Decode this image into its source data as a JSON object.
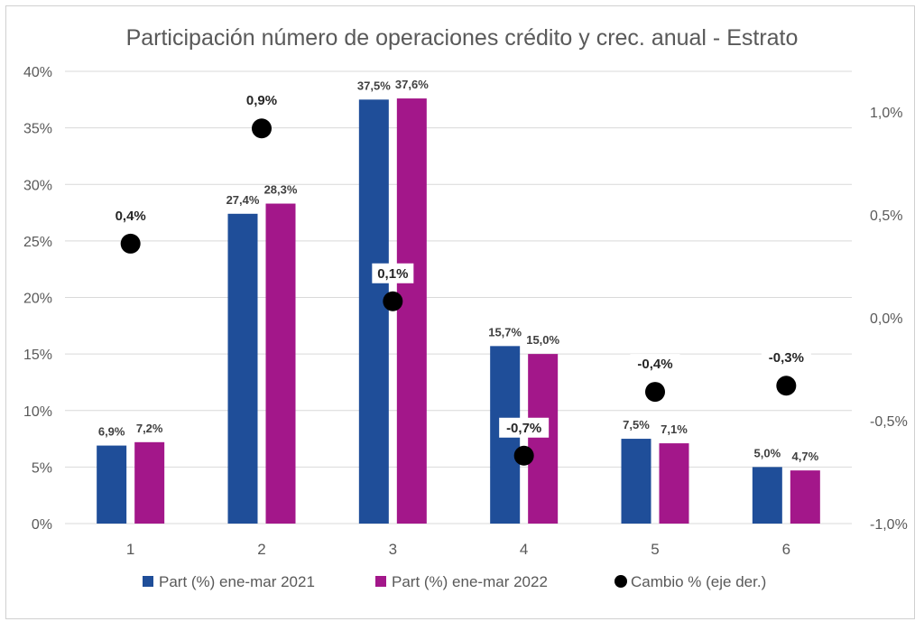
{
  "chart_data": {
    "type": "bar",
    "title": "Participación número de operaciones crédito y crec. anual - Estrato",
    "categories": [
      "1",
      "2",
      "3",
      "4",
      "5",
      "6"
    ],
    "series": [
      {
        "name": "Part (%) ene-mar 2021",
        "color": "#1f4e99",
        "values": [
          6.9,
          27.4,
          37.5,
          15.7,
          7.5,
          5.0
        ],
        "labels": [
          "6,9%",
          "27,4%",
          "37,5%",
          "15,7%",
          "7,5%",
          "5,0%"
        ]
      },
      {
        "name": "Part (%) ene-mar 2022",
        "color": "#a3178a",
        "values": [
          7.2,
          28.3,
          37.6,
          15.0,
          7.1,
          4.7
        ],
        "labels": [
          "7,2%",
          "28,3%",
          "37,6%",
          "15,0%",
          "7,1%",
          "4,7%"
        ]
      },
      {
        "name": "Cambio % (eje der.)",
        "type": "scatter",
        "axis": "right",
        "color": "#000000",
        "values": [
          0.36,
          0.92,
          0.08,
          -0.67,
          -0.36,
          -0.33
        ],
        "labels": [
          "0,4%",
          "0,9%",
          "0,1%",
          "-0,7%",
          "-0,4%",
          "-0,3%"
        ]
      }
    ],
    "left_axis": {
      "ylim": [
        0,
        40
      ],
      "ticks": [
        0,
        5,
        10,
        15,
        20,
        25,
        30,
        35,
        40
      ],
      "tick_labels": [
        "0%",
        "5%",
        "10%",
        "15%",
        "20%",
        "25%",
        "30%",
        "35%",
        "40%"
      ]
    },
    "right_axis": {
      "ylim": [
        -1.0,
        1.2
      ],
      "ticks": [
        -1.0,
        -0.5,
        0.0,
        0.5,
        1.0
      ],
      "tick_labels": [
        "-1,0%",
        "-0,5%",
        "0,0%",
        "0,5%",
        "1,0%"
      ]
    },
    "grid": true,
    "legend": "bottom"
  }
}
